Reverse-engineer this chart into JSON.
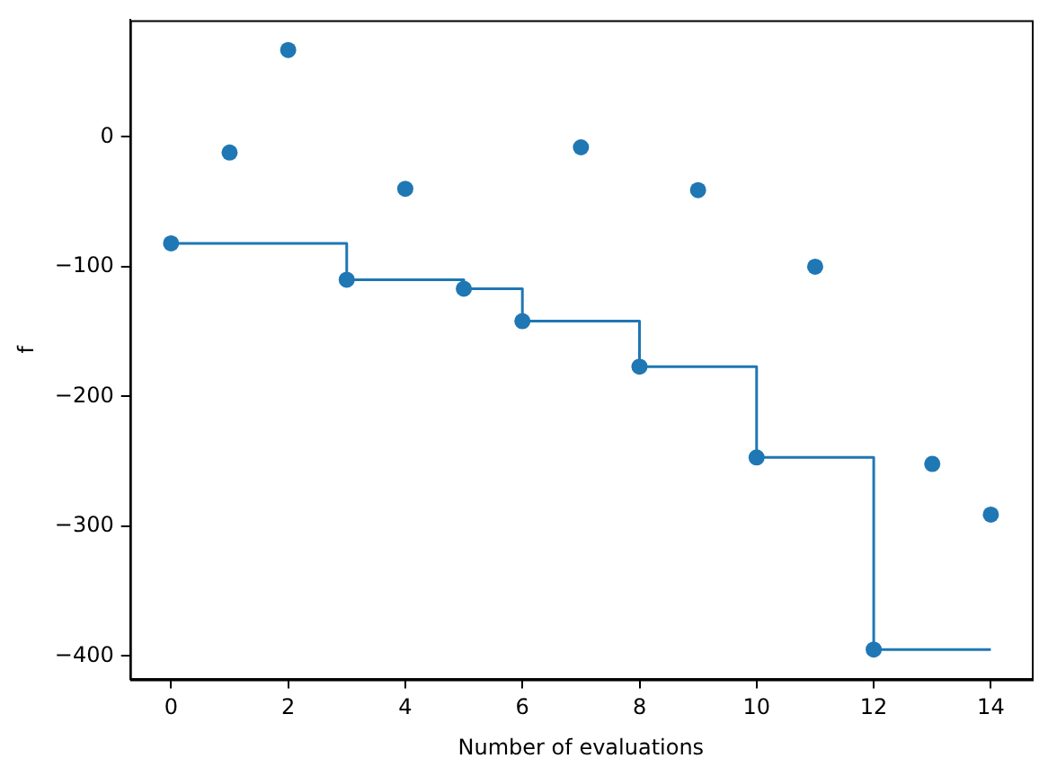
{
  "chart_data": {
    "type": "scatter",
    "xlabel": "Number of evaluations",
    "ylabel": "f",
    "xlim": [
      -0.7,
      14.7
    ],
    "xticks": [
      0,
      2,
      4,
      6,
      8,
      10,
      12,
      14
    ],
    "ylim": [
      -418,
      90
    ],
    "yticks": [
      -400,
      -300,
      -200,
      -100,
      0
    ],
    "grid": false,
    "legend": false,
    "marker": "circle",
    "series": [
      {
        "color": "#1f77b4",
        "x": [
          0,
          1,
          2,
          3,
          4,
          5,
          6,
          7,
          8,
          9,
          10,
          11,
          12,
          13,
          14
        ],
        "values": [
          -82,
          -12,
          67,
          -110,
          -40,
          -117,
          -142,
          -8,
          -177,
          -41,
          -247,
          -100,
          -395,
          -252,
          -291
        ]
      },
      {
        "type": "step",
        "color": "#1f77b4",
        "marker": "none",
        "x": [
          0,
          1,
          2,
          3,
          4,
          5,
          6,
          7,
          8,
          9,
          10,
          11,
          12,
          13,
          14
        ],
        "values": [
          -82,
          -82,
          -82,
          -110,
          -110,
          -117,
          -142,
          -142,
          -177,
          -177,
          -247,
          -247,
          -395,
          -395,
          -395
        ]
      }
    ]
  }
}
